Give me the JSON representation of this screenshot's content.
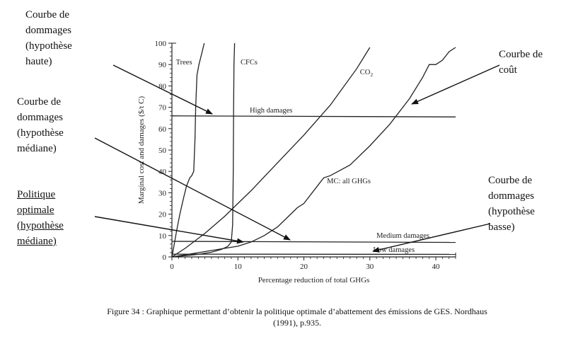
{
  "annotations": {
    "high": [
      "Courbe de",
      "dommages",
      "(hypothèse",
      "haute)"
    ],
    "median": [
      "Courbe de",
      "dommages",
      "(hypothèse",
      "médiane)"
    ],
    "policy": [
      "Politique",
      "optimale",
      "(hypothèse",
      "médiane)"
    ],
    "cost": [
      "Courbe de",
      "coût"
    ],
    "low": [
      "Courbe de",
      "dommages",
      "(hypothèse",
      "basse)"
    ]
  },
  "caption": {
    "line1": "Figure 34 : Graphique permettant d’obtenir la politique optimale d’abattement des émissions de GES. Nordhaus",
    "line2": "(1991), p.935."
  },
  "chart_data": {
    "type": "line",
    "xlabel": "Percentage reduction of total GHGs",
    "ylabel": "Marginal cost and damages ($/t C)",
    "xlim": [
      0,
      43
    ],
    "ylim": [
      0,
      100
    ],
    "xticks": [
      0,
      10,
      20,
      30,
      40
    ],
    "yticks": [
      0,
      10,
      20,
      30,
      40,
      50,
      60,
      70,
      80,
      90,
      100
    ],
    "series": [
      {
        "name": "Trees",
        "x": [
          0,
          0.3,
          0.7,
          1.2,
          1.8,
          2.2,
          2.7,
          3.0,
          3.3,
          3.5,
          3.6,
          3.8,
          4.1,
          4.5,
          4.9
        ],
        "y": [
          0,
          5,
          12,
          20,
          28,
          33,
          37,
          38,
          40,
          55,
          70,
          85,
          90,
          95,
          100
        ]
      },
      {
        "name": "CFCs",
        "x": [
          0,
          2,
          4,
          6,
          7.5,
          8.5,
          9.0,
          9.2,
          9.3,
          9.35,
          9.4,
          9.5
        ],
        "y": [
          0,
          0.6,
          1.2,
          2.2,
          3.5,
          5,
          7,
          15,
          40,
          70,
          90,
          100
        ]
      },
      {
        "name": "CO2",
        "x": [
          0,
          2,
          5,
          8,
          12,
          16,
          20,
          24,
          28,
          30
        ],
        "y": [
          0,
          4,
          11,
          19,
          31,
          44,
          57,
          71,
          88,
          98
        ]
      },
      {
        "name": "MC: all GHGs",
        "x": [
          0,
          4,
          8,
          10,
          11,
          12,
          14,
          16,
          18,
          19,
          20,
          22,
          23,
          24,
          27,
          30,
          33,
          36,
          38,
          39,
          40,
          41,
          42,
          43
        ],
        "y": [
          0,
          2,
          4,
          5,
          6,
          7,
          10,
          14,
          20,
          23,
          25,
          33,
          37,
          38,
          43,
          52,
          62,
          74,
          84,
          90,
          90,
          92,
          96,
          98
        ]
      },
      {
        "name": "High damages",
        "x": [
          0,
          43
        ],
        "y": [
          66,
          65.5
        ]
      },
      {
        "name": "Medium damages",
        "x": [
          0,
          43
        ],
        "y": [
          7.3,
          6.8
        ]
      },
      {
        "name": "Low damages",
        "x": [
          0,
          43
        ],
        "y": [
          1.3,
          1.2
        ]
      }
    ],
    "series_labels": {
      "trees": "Trees",
      "cfcs": "CFCs",
      "co2_base": "CO",
      "co2_sub": "2",
      "mc": "MC: all GHGs",
      "high": "High damages",
      "medium": "Medium damages",
      "low": "Low damages"
    },
    "grid": false
  }
}
